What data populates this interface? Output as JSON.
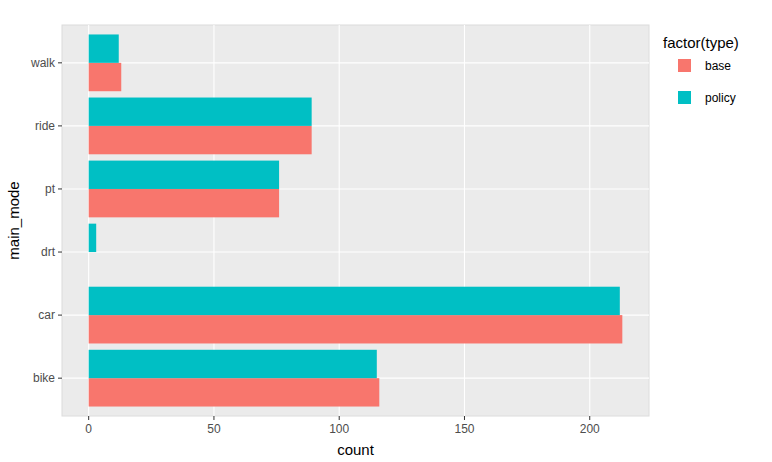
{
  "chart_data": {
    "type": "bar",
    "orientation": "horizontal",
    "x_label": "count",
    "y_label": "main_mode",
    "legend_title": "factor(type)",
    "categories": [
      "bike",
      "car",
      "drt",
      "pt",
      "ride",
      "walk"
    ],
    "series": [
      {
        "name": "base",
        "color": "#F8766D",
        "values": [
          116,
          213,
          0,
          76,
          89,
          13
        ]
      },
      {
        "name": "policy",
        "color": "#00BFC4",
        "values": [
          115,
          212,
          3,
          76,
          89,
          12
        ]
      }
    ],
    "xlim": [
      -10.65,
      223.65
    ],
    "xticks": [
      0,
      50,
      100,
      150,
      200
    ],
    "grid": true,
    "legend": "right"
  }
}
